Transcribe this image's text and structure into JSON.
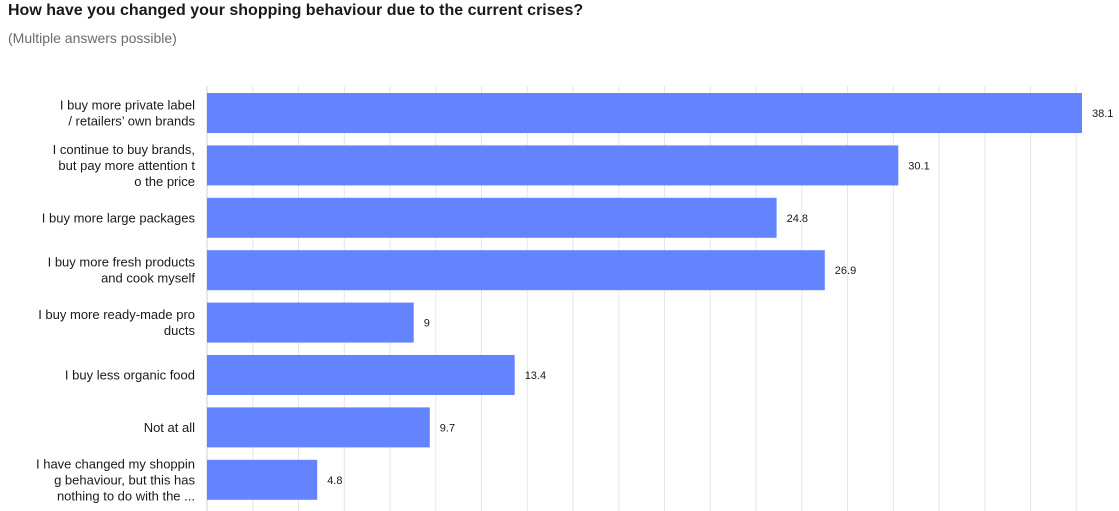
{
  "colors": {
    "bar": "#6383FF",
    "grid": "#e6e6e6"
  },
  "chart_data": {
    "type": "bar",
    "orientation": "horizontal",
    "title": "How have you changed your shopping behaviour due to the current crises?",
    "subtitle": "(Multiple answers possible)",
    "xlabel": "",
    "ylabel": "",
    "xlim": [
      0,
      38.1
    ],
    "grid": true,
    "legend": "none",
    "categories": [
      [
        "I buy more private label",
        "/ retailers’ own brands"
      ],
      [
        "I continue to buy brands,",
        "but pay more attention t",
        "o the price"
      ],
      [
        "I buy more large packages"
      ],
      [
        "I buy more fresh products",
        "and cook myself"
      ],
      [
        "I buy more ready-made pro",
        "ducts"
      ],
      [
        "I buy less organic food"
      ],
      [
        "Not at all"
      ],
      [
        "I have changed my shoppin",
        "g behaviour, but this has",
        "nothing to do with the ..."
      ]
    ],
    "values": [
      38.1,
      30.1,
      24.8,
      26.9,
      9,
      13.4,
      9.7,
      4.8
    ],
    "value_labels": [
      "38.1",
      "30.1",
      "24.8",
      "26.9",
      "9",
      "13.4",
      "9.7",
      "4.8"
    ]
  }
}
